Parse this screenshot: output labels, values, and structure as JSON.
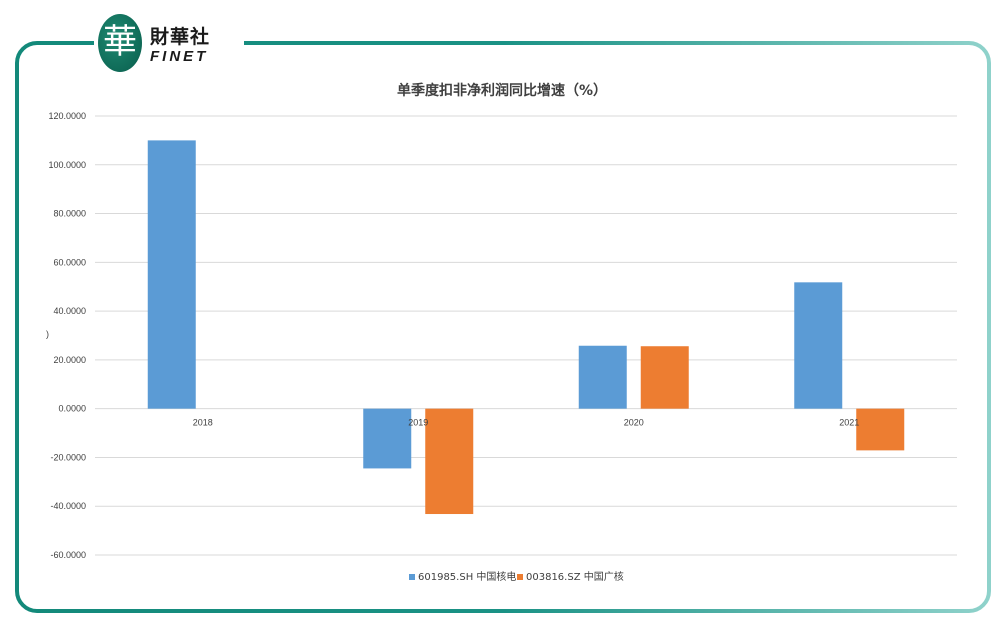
{
  "brand": {
    "seal_char": "華",
    "name_cn": "財華社",
    "name_en": "FINET",
    "accent_color": "#138f7e"
  },
  "chart_data": {
    "type": "bar",
    "title": "单季度扣非净利润同比增速（%）",
    "categories": [
      "2018",
      "2019",
      "2020",
      "2021"
    ],
    "series": [
      {
        "name": "601985.SH 中国核电",
        "color": "#5b9bd5",
        "values": [
          110,
          -24.5,
          25.8,
          51.8
        ]
      },
      {
        "name": "003816.SZ 中国广核",
        "color": "#ed7d31",
        "values": [
          null,
          -43.2,
          25.6,
          -17.1
        ]
      }
    ],
    "ylim": [
      -60,
      120
    ],
    "yticks": [
      "-60.0000",
      "-40.0000",
      "-20.0000",
      "0.0000",
      "20.0000",
      "40.0000",
      "60.0000",
      "80.0000",
      "100.0000",
      "120.0000"
    ],
    "ylabel": ")",
    "xlabel": "",
    "grid": true,
    "legend_position": "bottom"
  }
}
